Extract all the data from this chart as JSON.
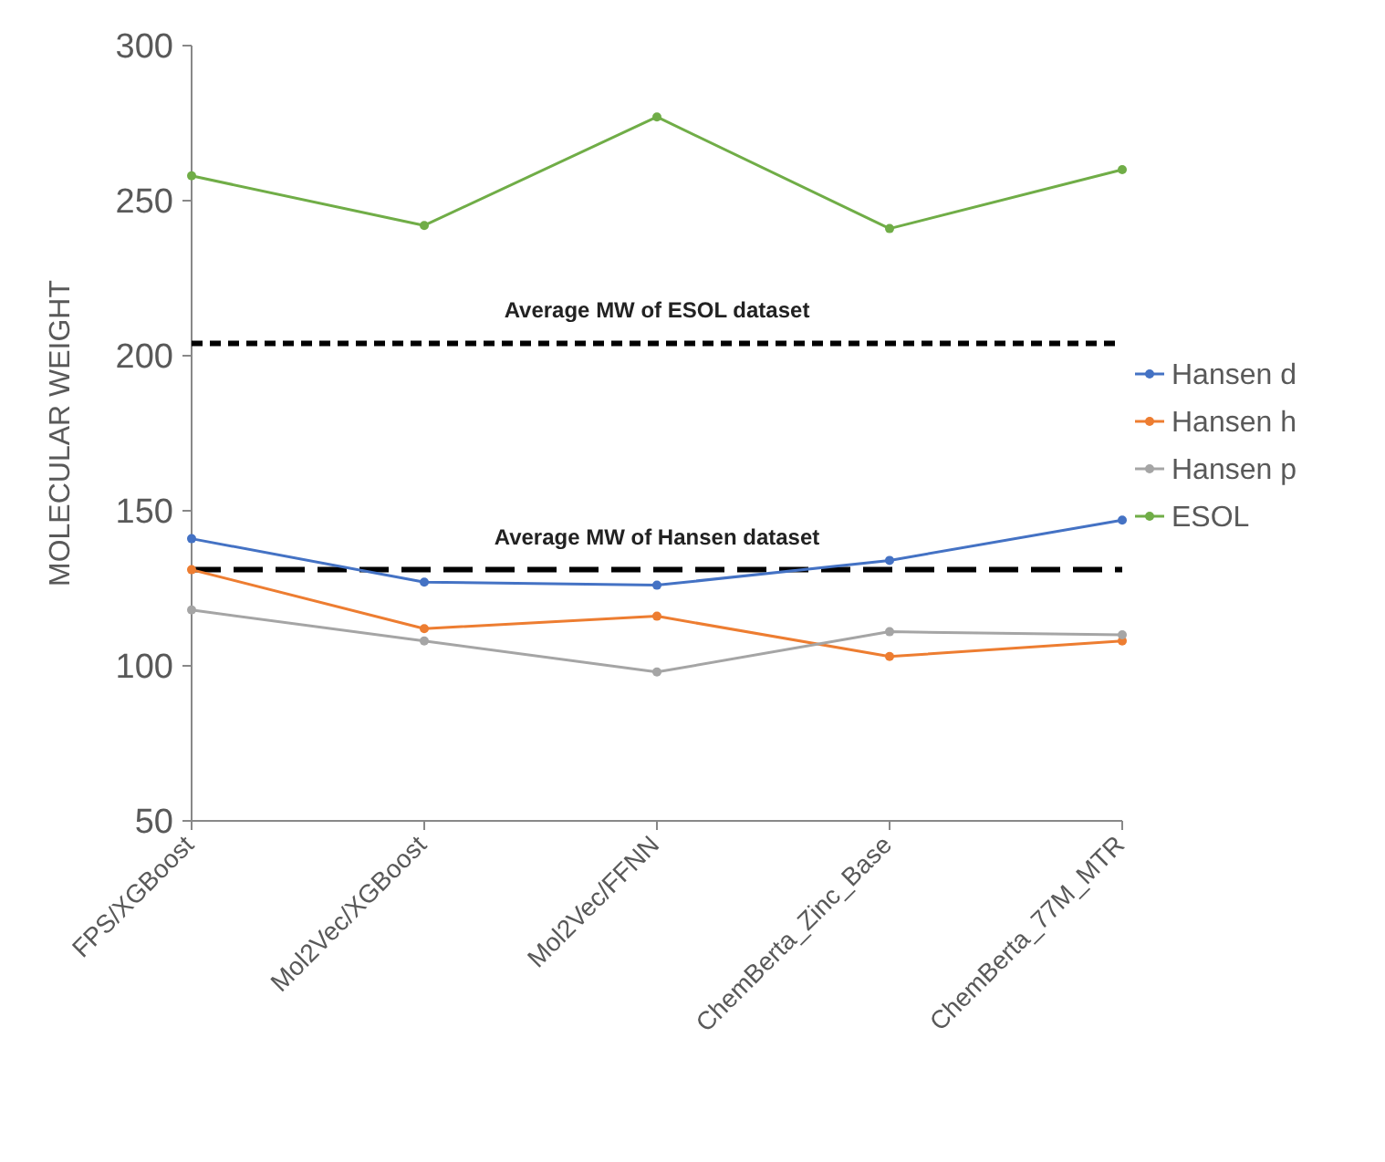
{
  "chart_data": {
    "type": "line",
    "ylabel": "MOLECULAR WEIGHT",
    "categories": [
      "FPS/XGBoost",
      "Mol2Vec/XGBoost",
      "Mol2Vec/FFNN",
      "ChemBerta_Zinc_Base",
      "ChemBerta_77M_MTR"
    ],
    "series": [
      {
        "name": "Hansen d",
        "color": "#4472c4",
        "values": [
          141,
          127,
          126,
          134,
          147
        ]
      },
      {
        "name": "Hansen h",
        "color": "#ed7d31",
        "values": [
          131,
          112,
          116,
          103,
          108
        ]
      },
      {
        "name": "Hansen p",
        "color": "#a5a5a5",
        "values": [
          118,
          108,
          98,
          111,
          110
        ]
      },
      {
        "name": "ESOL",
        "color": "#70ad47",
        "values": [
          258,
          242,
          277,
          241,
          260
        ]
      }
    ],
    "ylim": [
      50,
      300
    ],
    "yticks": [
      50,
      100,
      150,
      200,
      250,
      300
    ],
    "ref_lines": [
      {
        "axis": "y",
        "value": 204,
        "label": "Average MW of ESOL dataset",
        "color": "#000000",
        "line_style": "dashed"
      },
      {
        "axis": "y",
        "value": 131,
        "label": "Average MW of Hansen dataset",
        "color": "#000000",
        "line_style": "dashed"
      }
    ],
    "legend": "right",
    "marker": "circle",
    "line_style": "solid",
    "grid": false
  }
}
